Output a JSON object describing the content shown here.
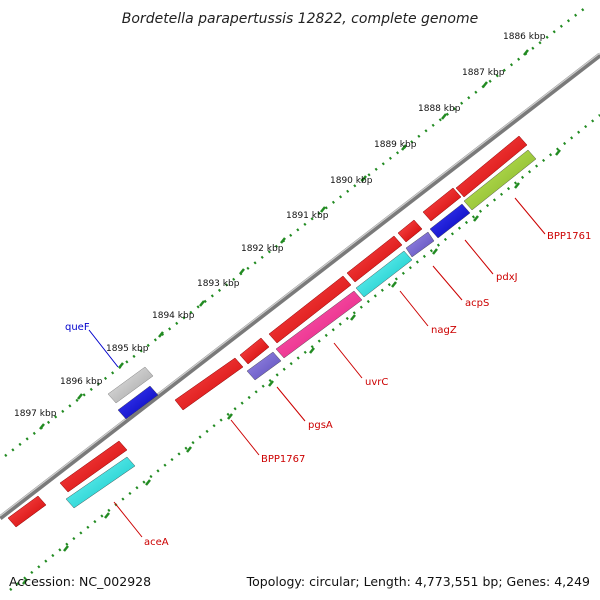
{
  "title": "Bordetella parapertussis 12822, complete genome",
  "footer": {
    "accession": "Accession: NC_002928",
    "summary": "Topology: circular; Length: 4,773,551 bp; Genes: 4,249"
  },
  "ruler_labels": [
    "1886 kbp",
    "1887 kbp",
    "1888 kbp",
    "1889 kbp",
    "1890 kbp",
    "1891 kbp",
    "1892 kbp",
    "1893 kbp",
    "1894 kbp",
    "1895 kbp",
    "1896 kbp",
    "1897 kbp"
  ],
  "gene_labels": [
    {
      "name": "queF",
      "color": "#0000cc"
    },
    {
      "name": "BPP1761",
      "color": "#cc0000"
    },
    {
      "name": "pdxJ",
      "color": "#cc0000"
    },
    {
      "name": "acpS",
      "color": "#cc0000"
    },
    {
      "name": "nagZ",
      "color": "#cc0000"
    },
    {
      "name": "uvrC",
      "color": "#cc0000"
    },
    {
      "name": "pgsA",
      "color": "#cc0000"
    },
    {
      "name": "BPP1767",
      "color": "#cc0000"
    },
    {
      "name": "aceA",
      "color": "#cc0000"
    }
  ],
  "colors": {
    "gene_red": "#ff0000",
    "cyan": "#00e6e6",
    "magenta": "#ff1493",
    "slate_blue": "#6a5acd",
    "blue": "#0000ee",
    "yellow_green": "#9acd32",
    "silver": "#c0c0c0",
    "ruler_green": "#228b22",
    "backbone": "#7a7a7a"
  }
}
